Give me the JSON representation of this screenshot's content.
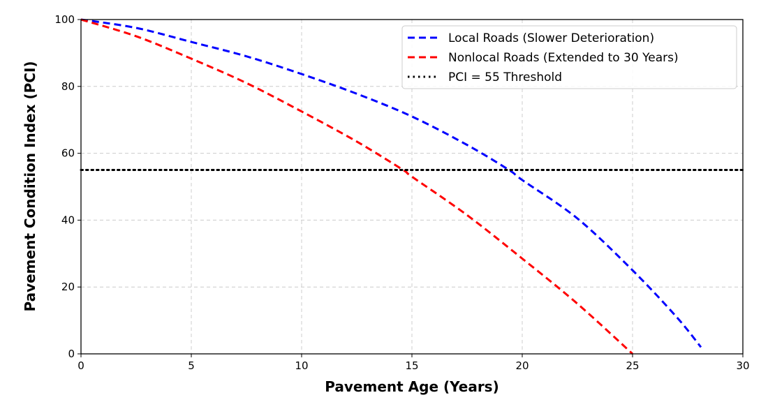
{
  "chart_data": {
    "type": "line",
    "title": "",
    "xlabel": "Pavement Age (Years)",
    "ylabel": "Pavement Condition Index (PCI)",
    "xlim": [
      0,
      30
    ],
    "ylim": [
      0,
      100
    ],
    "xticks": [
      0,
      5,
      10,
      15,
      20,
      25,
      30
    ],
    "yticks": [
      0,
      20,
      40,
      60,
      80,
      100
    ],
    "grid": true,
    "legend_placement": "upper-right",
    "series": [
      {
        "name": "Local Roads (Slower Deterioration)",
        "color": "#0000ff",
        "style": "dashed",
        "x": [
          0,
          2.5,
          5,
          7.5,
          10,
          12.5,
          15,
          17.5,
          19.4,
          20,
          22.5,
          25,
          27,
          28.1
        ],
        "y": [
          100,
          97.5,
          93.3,
          89,
          83.7,
          77.8,
          71,
          62.5,
          55,
          52,
          40.5,
          25,
          11,
          2
        ]
      },
      {
        "name": "Nonlocal Roads (Extended to 30 Years)",
        "color": "#ff0000",
        "style": "dashed",
        "x": [
          0,
          2.5,
          5,
          7.5,
          10,
          12.5,
          14.6,
          15,
          17.5,
          20,
          22.5,
          25
        ],
        "y": [
          100,
          95,
          88.3,
          81,
          72.5,
          63.5,
          55,
          53,
          41.5,
          28.5,
          15,
          0
        ]
      },
      {
        "name": "PCI = 55 Threshold",
        "color": "#000000",
        "style": "dotted",
        "x": [
          0,
          30
        ],
        "y": [
          55,
          55
        ]
      }
    ]
  }
}
